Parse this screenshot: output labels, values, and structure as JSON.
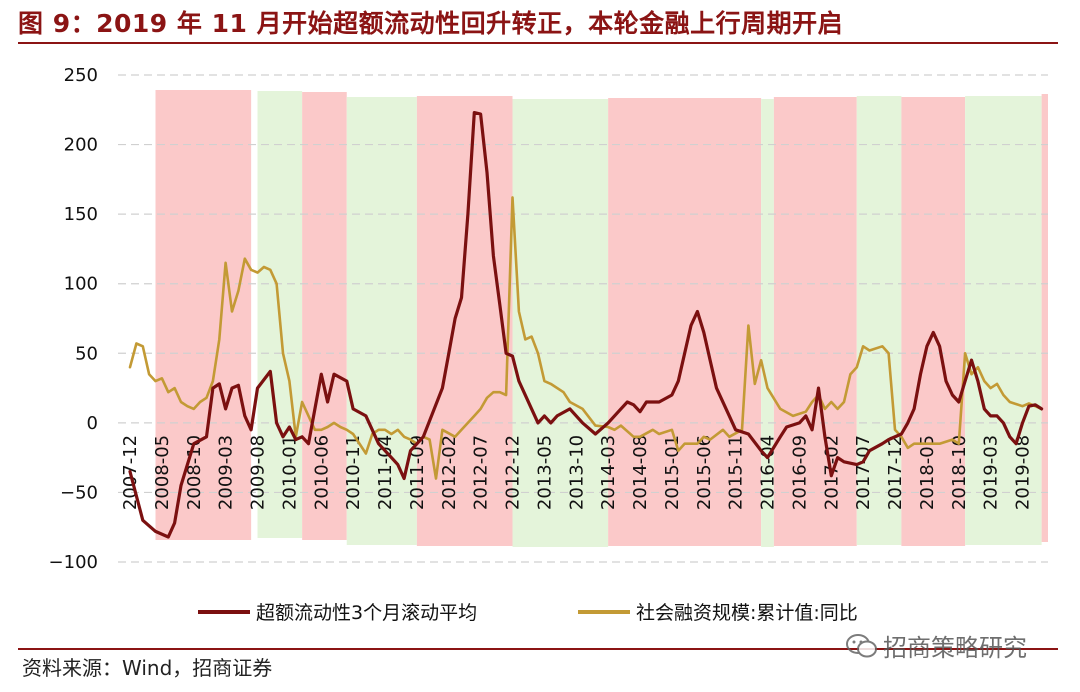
{
  "title": "图 9：2019 年 11 月开始超额流动性回升转正，本轮金融上行周期开启",
  "source": "资料来源：Wind，招商证券",
  "watermark": "招商策略研究",
  "colors": {
    "liquidity": "#7B1010",
    "tsf": "#C39A35",
    "up_band": "#FBC9C9",
    "down_band": "#E4F4DA",
    "accent": "#8B1414"
  },
  "chart_data": {
    "type": "line",
    "title": "",
    "xlabel": "",
    "ylabel": "",
    "ylim": [
      -100,
      250
    ],
    "yticks": [
      -100,
      -50,
      0,
      50,
      100,
      150,
      200,
      250
    ],
    "xlim": [
      "2007-12",
      "2019-12"
    ],
    "xticks": [
      "2007-12",
      "2008-05",
      "2008-10",
      "2009-03",
      "2009-08",
      "2010-01",
      "2010-06",
      "2010-11",
      "2011-04",
      "2011-09",
      "2012-02",
      "2012-07",
      "2012-12",
      "2013-05",
      "2013-10",
      "2014-03",
      "2014-08",
      "2015-01",
      "2015-06",
      "2015-11",
      "2016-04",
      "2016-09",
      "2017-02",
      "2017-07",
      "2017-12",
      "2018-05",
      "2018-10",
      "2019-03",
      "2019-08"
    ],
    "grid": "horizontal-dashed",
    "legend": "bottom",
    "bands": [
      {
        "start": "2008-04",
        "end": "2009-07",
        "phase": "up"
      },
      {
        "start": "2009-08",
        "end": "2010-03",
        "phase": "down"
      },
      {
        "start": "2010-03",
        "end": "2010-10",
        "phase": "up"
      },
      {
        "start": "2010-10",
        "end": "2011-09",
        "phase": "down"
      },
      {
        "start": "2011-09",
        "end": "2012-12",
        "phase": "up"
      },
      {
        "start": "2012-12",
        "end": "2014-03",
        "phase": "down"
      },
      {
        "start": "2014-03",
        "end": "2016-03",
        "phase": "up"
      },
      {
        "start": "2016-03",
        "end": "2016-05",
        "phase": "down"
      },
      {
        "start": "2016-05",
        "end": "2017-06",
        "phase": "up"
      },
      {
        "start": "2017-06",
        "end": "2018-01",
        "phase": "down"
      },
      {
        "start": "2018-01",
        "end": "2018-11",
        "phase": "up"
      },
      {
        "start": "2018-11",
        "end": "2019-11",
        "phase": "down"
      },
      {
        "start": "2019-11",
        "end": "2019-12",
        "phase": "up"
      }
    ],
    "series": [
      {
        "name": "超额流动性3个月滚动平均",
        "points": [
          [
            "2007-12",
            -35
          ],
          [
            "2008-02",
            -70
          ],
          [
            "2008-04",
            -78
          ],
          [
            "2008-06",
            -82
          ],
          [
            "2008-07",
            -72
          ],
          [
            "2008-08",
            -45
          ],
          [
            "2008-10",
            -15
          ],
          [
            "2008-12",
            -10
          ],
          [
            "2009-01",
            25
          ],
          [
            "2009-02",
            28
          ],
          [
            "2009-03",
            10
          ],
          [
            "2009-04",
            25
          ],
          [
            "2009-05",
            27
          ],
          [
            "2009-06",
            5
          ],
          [
            "2009-07",
            -5
          ],
          [
            "2009-08",
            25
          ],
          [
            "2009-10",
            37
          ],
          [
            "2009-11",
            0
          ],
          [
            "2009-12",
            -10
          ],
          [
            "2010-01",
            -3
          ],
          [
            "2010-02",
            -12
          ],
          [
            "2010-03",
            -10
          ],
          [
            "2010-04",
            -15
          ],
          [
            "2010-05",
            10
          ],
          [
            "2010-06",
            35
          ],
          [
            "2010-07",
            15
          ],
          [
            "2010-08",
            35
          ],
          [
            "2010-10",
            30
          ],
          [
            "2010-11",
            10
          ],
          [
            "2011-01",
            5
          ],
          [
            "2011-03",
            -15
          ],
          [
            "2011-05",
            -25
          ],
          [
            "2011-06",
            -30
          ],
          [
            "2011-07",
            -40
          ],
          [
            "2011-08",
            -20
          ],
          [
            "2011-10",
            -10
          ],
          [
            "2012-01",
            25
          ],
          [
            "2012-02",
            50
          ],
          [
            "2012-03",
            75
          ],
          [
            "2012-04",
            90
          ],
          [
            "2012-05",
            150
          ],
          [
            "2012-06",
            223
          ],
          [
            "2012-07",
            222
          ],
          [
            "2012-08",
            180
          ],
          [
            "2012-09",
            120
          ],
          [
            "2012-10",
            85
          ],
          [
            "2012-11",
            50
          ],
          [
            "2012-12",
            48
          ],
          [
            "2013-01",
            30
          ],
          [
            "2013-03",
            10
          ],
          [
            "2013-04",
            0
          ],
          [
            "2013-05",
            5
          ],
          [
            "2013-06",
            0
          ],
          [
            "2013-07",
            5
          ],
          [
            "2013-09",
            10
          ],
          [
            "2013-11",
            0
          ],
          [
            "2014-01",
            -8
          ],
          [
            "2014-03",
            0
          ],
          [
            "2014-05",
            10
          ],
          [
            "2014-06",
            15
          ],
          [
            "2014-07",
            13
          ],
          [
            "2014-08",
            8
          ],
          [
            "2014-09",
            15
          ],
          [
            "2014-11",
            15
          ],
          [
            "2015-01",
            20
          ],
          [
            "2015-02",
            30
          ],
          [
            "2015-04",
            70
          ],
          [
            "2015-05",
            80
          ],
          [
            "2015-06",
            65
          ],
          [
            "2015-07",
            45
          ],
          [
            "2015-08",
            25
          ],
          [
            "2015-10",
            5
          ],
          [
            "2015-11",
            -5
          ],
          [
            "2016-01",
            -8
          ],
          [
            "2016-03",
            -20
          ],
          [
            "2016-04",
            -25
          ],
          [
            "2016-06",
            -10
          ],
          [
            "2016-07",
            -3
          ],
          [
            "2016-09",
            0
          ],
          [
            "2016-10",
            5
          ],
          [
            "2016-11",
            -5
          ],
          [
            "2016-12",
            25
          ],
          [
            "2017-01",
            -10
          ],
          [
            "2017-02",
            -38
          ],
          [
            "2017-03",
            -25
          ],
          [
            "2017-04",
            -28
          ],
          [
            "2017-06",
            -30
          ],
          [
            "2017-07",
            -28
          ],
          [
            "2017-08",
            -20
          ],
          [
            "2017-10",
            -15
          ],
          [
            "2017-11",
            -12
          ],
          [
            "2018-01",
            -8
          ],
          [
            "2018-02",
            0
          ],
          [
            "2018-03",
            10
          ],
          [
            "2018-04",
            35
          ],
          [
            "2018-05",
            55
          ],
          [
            "2018-06",
            65
          ],
          [
            "2018-07",
            55
          ],
          [
            "2018-08",
            30
          ],
          [
            "2018-09",
            20
          ],
          [
            "2018-10",
            15
          ],
          [
            "2018-11",
            30
          ],
          [
            "2018-12",
            45
          ],
          [
            "2019-01",
            30
          ],
          [
            "2019-02",
            10
          ],
          [
            "2019-03",
            5
          ],
          [
            "2019-04",
            5
          ],
          [
            "2019-05",
            0
          ],
          [
            "2019-06",
            -10
          ],
          [
            "2019-07",
            -15
          ],
          [
            "2019-08",
            0
          ],
          [
            "2019-09",
            12
          ],
          [
            "2019-10",
            13
          ],
          [
            "2019-11",
            10
          ]
        ]
      },
      {
        "name": "社会融资规模:累计值:同比",
        "points": [
          [
            "2007-12",
            40
          ],
          [
            "2008-01",
            57
          ],
          [
            "2008-02",
            55
          ],
          [
            "2008-03",
            35
          ],
          [
            "2008-04",
            30
          ],
          [
            "2008-05",
            32
          ],
          [
            "2008-06",
            22
          ],
          [
            "2008-07",
            25
          ],
          [
            "2008-08",
            15
          ],
          [
            "2008-09",
            12
          ],
          [
            "2008-10",
            10
          ],
          [
            "2008-11",
            15
          ],
          [
            "2008-12",
            18
          ],
          [
            "2009-01",
            30
          ],
          [
            "2009-02",
            60
          ],
          [
            "2009-03",
            115
          ],
          [
            "2009-04",
            80
          ],
          [
            "2009-05",
            95
          ],
          [
            "2009-06",
            118
          ],
          [
            "2009-07",
            110
          ],
          [
            "2009-08",
            108
          ],
          [
            "2009-09",
            112
          ],
          [
            "2009-10",
            110
          ],
          [
            "2009-11",
            100
          ],
          [
            "2009-12",
            50
          ],
          [
            "2010-01",
            30
          ],
          [
            "2010-02",
            -10
          ],
          [
            "2010-03",
            15
          ],
          [
            "2010-04",
            5
          ],
          [
            "2010-05",
            -5
          ],
          [
            "2010-06",
            -5
          ],
          [
            "2010-07",
            -3
          ],
          [
            "2010-08",
            0
          ],
          [
            "2010-09",
            -3
          ],
          [
            "2010-10",
            -5
          ],
          [
            "2010-11",
            -8
          ],
          [
            "2011-01",
            -22
          ],
          [
            "2011-02",
            -8
          ],
          [
            "2011-03",
            -5
          ],
          [
            "2011-04",
            -5
          ],
          [
            "2011-05",
            -8
          ],
          [
            "2011-06",
            -5
          ],
          [
            "2011-07",
            -10
          ],
          [
            "2011-08",
            -12
          ],
          [
            "2011-09",
            -15
          ],
          [
            "2011-10",
            -10
          ],
          [
            "2011-11",
            -12
          ],
          [
            "2011-12",
            -40
          ],
          [
            "2012-01",
            -5
          ],
          [
            "2012-03",
            -10
          ],
          [
            "2012-04",
            -5
          ],
          [
            "2012-06",
            5
          ],
          [
            "2012-07",
            10
          ],
          [
            "2012-08",
            18
          ],
          [
            "2012-09",
            22
          ],
          [
            "2012-10",
            22
          ],
          [
            "2012-11",
            20
          ],
          [
            "2012-12",
            162
          ],
          [
            "2013-01",
            80
          ],
          [
            "2013-02",
            60
          ],
          [
            "2013-03",
            62
          ],
          [
            "2013-04",
            50
          ],
          [
            "2013-05",
            30
          ],
          [
            "2013-06",
            28
          ],
          [
            "2013-08",
            22
          ],
          [
            "2013-09",
            15
          ],
          [
            "2013-11",
            10
          ],
          [
            "2014-01",
            -2
          ],
          [
            "2014-03",
            -3
          ],
          [
            "2014-04",
            -5
          ],
          [
            "2014-05",
            -2
          ],
          [
            "2014-07",
            -10
          ],
          [
            "2014-08",
            -10
          ],
          [
            "2014-10",
            -5
          ],
          [
            "2014-11",
            -8
          ],
          [
            "2015-01",
            -5
          ],
          [
            "2015-02",
            -20
          ],
          [
            "2015-03",
            -15
          ],
          [
            "2015-05",
            -15
          ],
          [
            "2015-06",
            -10
          ],
          [
            "2015-07",
            -12
          ],
          [
            "2015-09",
            -5
          ],
          [
            "2015-10",
            -10
          ],
          [
            "2015-12",
            -5
          ],
          [
            "2016-01",
            70
          ],
          [
            "2016-02",
            28
          ],
          [
            "2016-03",
            45
          ],
          [
            "2016-04",
            25
          ],
          [
            "2016-06",
            10
          ],
          [
            "2016-08",
            5
          ],
          [
            "2016-10",
            8
          ],
          [
            "2016-11",
            15
          ],
          [
            "2016-12",
            20
          ],
          [
            "2017-01",
            10
          ],
          [
            "2017-02",
            15
          ],
          [
            "2017-03",
            10
          ],
          [
            "2017-04",
            15
          ],
          [
            "2017-05",
            35
          ],
          [
            "2017-06",
            40
          ],
          [
            "2017-07",
            55
          ],
          [
            "2017-08",
            52
          ],
          [
            "2017-10",
            55
          ],
          [
            "2017-11",
            50
          ],
          [
            "2017-12",
            -5
          ],
          [
            "2018-01",
            -10
          ],
          [
            "2018-02",
            -18
          ],
          [
            "2018-03",
            -15
          ],
          [
            "2018-05",
            -15
          ],
          [
            "2018-07",
            -15
          ],
          [
            "2018-09",
            -12
          ],
          [
            "2018-10",
            -15
          ],
          [
            "2018-11",
            50
          ],
          [
            "2018-12",
            35
          ],
          [
            "2019-01",
            40
          ],
          [
            "2019-02",
            30
          ],
          [
            "2019-03",
            25
          ],
          [
            "2019-04",
            28
          ],
          [
            "2019-05",
            20
          ],
          [
            "2019-06",
            15
          ],
          [
            "2019-08",
            12
          ],
          [
            "2019-09",
            14
          ],
          [
            "2019-10",
            12
          ],
          [
            "2019-11",
            10
          ]
        ]
      }
    ]
  }
}
